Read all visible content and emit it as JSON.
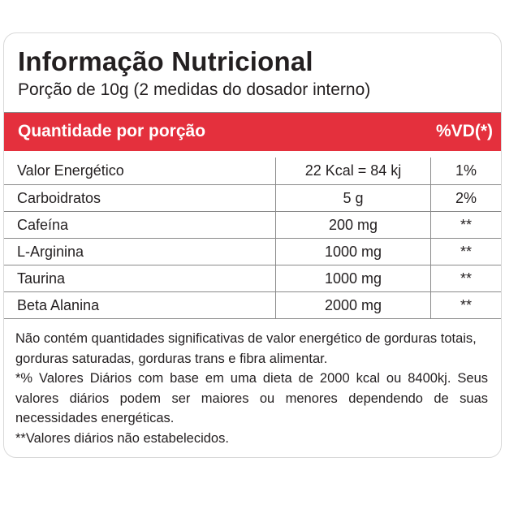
{
  "panel": {
    "title": "Informação Nutricional",
    "serving": "Porção de 10g (2 medidas do dosador interno)",
    "header_left": "Quantidade por porção",
    "header_right": "%VD(*)",
    "accent_color": "#e4303d",
    "rows": [
      {
        "name": "Valor Energético",
        "amount": "22 Kcal = 84 kj",
        "vd": "1%"
      },
      {
        "name": "Carboidratos",
        "amount": "5 g",
        "vd": "2%"
      },
      {
        "name": "Cafeína",
        "amount": "200 mg",
        "vd": "**"
      },
      {
        "name": "L-Arginina",
        "amount": "1000 mg",
        "vd": "**"
      },
      {
        "name": "Taurina",
        "amount": "1000 mg",
        "vd": "**"
      },
      {
        "name": "Beta Alanina",
        "amount": "2000 mg",
        "vd": "**"
      }
    ],
    "footnotes": {
      "not_significant": "Não contém quantidades significativas de valor energético de gorduras totais, gorduras saturadas, gorduras trans e fibra alimentar.",
      "daily_values": "*% Valores Diários com base em uma dieta de 2000 kcal ou 8400kj. Seus valores diários podem ser maiores ou menores dependendo de suas necessidades energéticas.",
      "not_established": "**Valores diários não estabelecidos."
    }
  }
}
